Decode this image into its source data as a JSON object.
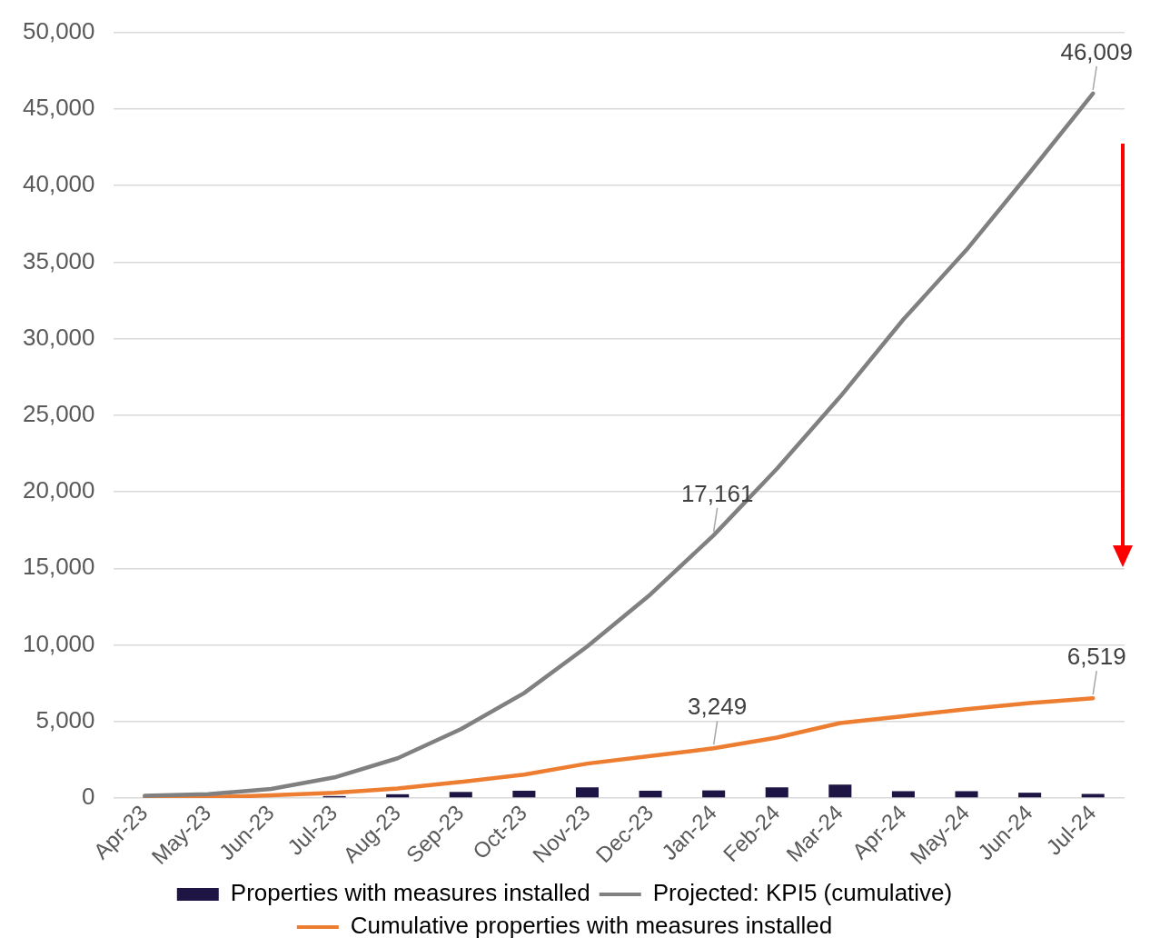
{
  "chart_data": {
    "type": "bar",
    "categories": [
      "Apr-23",
      "May-23",
      "Jun-23",
      "Jul-23",
      "Aug-23",
      "Sep-23",
      "Oct-23",
      "Nov-23",
      "Dec-23",
      "Jan-24",
      "Feb-24",
      "Mar-24",
      "Apr-24",
      "May-24",
      "Jun-24",
      "Jul-24"
    ],
    "series": [
      {
        "name": "Properties with measures installed",
        "color": "#1f1545",
        "values": [
          null,
          null,
          null,
          130,
          250,
          400,
          480,
          700,
          480,
          500,
          700,
          880,
          450,
          450,
          350,
          270
        ]
      },
      {
        "name": "Projected: KPI5 (cumulative)",
        "type": "line",
        "color": "#808080",
        "values": [
          150,
          250,
          600,
          1350,
          2600,
          4500,
          6850,
          9900,
          13300,
          17161,
          21500,
          26200,
          31250,
          35800,
          40850,
          46009
        ],
        "value_labels": [
          null,
          null,
          null,
          null,
          null,
          null,
          null,
          null,
          null,
          "17,161",
          null,
          null,
          null,
          null,
          null,
          "46,009"
        ]
      },
      {
        "name": "Cumulative properties with measures installed",
        "type": "line",
        "color": "#ed7d31",
        "values": [
          20,
          50,
          180,
          350,
          620,
          1050,
          1530,
          2250,
          2750,
          3249,
          3950,
          4900,
          5350,
          5800,
          6200,
          6519
        ],
        "value_labels": [
          null,
          null,
          null,
          null,
          null,
          null,
          null,
          null,
          null,
          "3,249",
          null,
          null,
          null,
          null,
          null,
          "6,519"
        ]
      }
    ],
    "ylim": [
      0,
      50000
    ],
    "yticks": [
      0,
      {
        "value": 5000,
        "label": "5,000"
      },
      {
        "value": 10000,
        "label": "10,000"
      },
      {
        "value": 15000,
        "label": "15,000"
      },
      {
        "value": 20000,
        "label": "20,000"
      },
      {
        "value": 25000,
        "label": "25,000"
      },
      {
        "value": 30000,
        "label": "30,000"
      },
      {
        "value": 35000,
        "label": "35,000"
      },
      {
        "value": 40000,
        "label": "40,000"
      },
      {
        "value": 45000,
        "label": "45,000"
      },
      {
        "value": 50000,
        "label": "50,000"
      }
    ],
    "grid": "y",
    "legend": "bottom",
    "marker": "none",
    "line_style": "solid"
  }
}
